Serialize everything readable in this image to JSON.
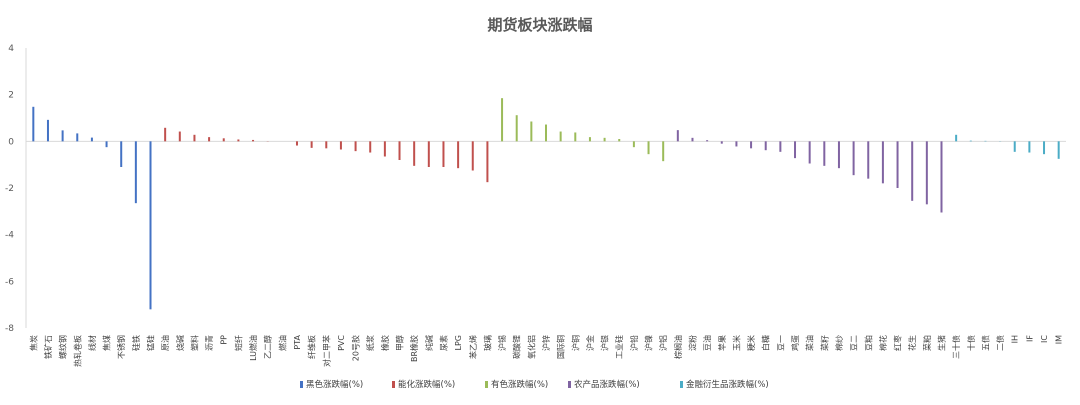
{
  "chart_data": {
    "type": "bar",
    "title": "期货板块涨跌幅",
    "xlabel": "",
    "ylabel": "",
    "ylim": [
      -8,
      4
    ],
    "yticks": [
      4,
      2,
      0,
      -2,
      -4,
      -6,
      -8
    ],
    "grid": false,
    "legend_position": "bottom",
    "series": [
      {
        "name": "黑色涨跌幅(%)",
        "color": "#4472C4",
        "categories": [
          "焦炭",
          "铁矿石",
          "螺纹钢",
          "热轧卷板",
          "线材",
          "焦煤",
          "不锈钢",
          "硅铁",
          "锰硅"
        ],
        "values": [
          1.48,
          0.92,
          0.47,
          0.34,
          0.16,
          -0.25,
          -1.1,
          -2.65,
          -7.2
        ]
      },
      {
        "name": "能化涨跌幅(%)",
        "color": "#C0504D",
        "categories": [
          "原油",
          "烧碱",
          "塑料",
          "沥青",
          "PP",
          "短纤",
          "LU燃油",
          "乙二醇",
          "燃油",
          "PTA",
          "纤维板",
          "对二甲苯",
          "PVC",
          "20号胶",
          "纸浆",
          "橡胶",
          "甲醇",
          "BR橡胶",
          "纯碱",
          "尿素",
          "LPG",
          "苯乙烯",
          "玻璃"
        ],
        "values": [
          0.58,
          0.42,
          0.28,
          0.18,
          0.13,
          0.08,
          0.06,
          0.01,
          0.0,
          -0.18,
          -0.28,
          -0.3,
          -0.35,
          -0.42,
          -0.48,
          -0.65,
          -0.8,
          -1.05,
          -1.1,
          -1.1,
          -1.15,
          -1.25,
          -1.75
        ]
      },
      {
        "name": "有色涨跌幅(%)",
        "color": "#9BBB59",
        "categories": [
          "沪锡",
          "碳酸锂",
          "氧化铝",
          "沪锌",
          "国际铜",
          "沪铜",
          "沪金",
          "沪银",
          "工业硅",
          "沪铅",
          "沪镍",
          "沪铝"
        ],
        "values": [
          1.85,
          1.12,
          0.85,
          0.72,
          0.42,
          0.38,
          0.18,
          0.15,
          0.1,
          -0.25,
          -0.55,
          -0.85
        ]
      },
      {
        "name": "农产品涨跌幅(%)",
        "color": "#8064A2",
        "categories": [
          "棕榈油",
          "淀粉",
          "豆油",
          "苹果",
          "玉米",
          "粳米",
          "白糖",
          "豆一",
          "鸡蛋",
          "菜油",
          "菜籽",
          "棉纱",
          "豆二",
          "豆粕",
          "棉花",
          "红枣",
          "花生",
          "菜粕",
          "生猪"
        ],
        "values": [
          0.48,
          0.15,
          0.05,
          -0.1,
          -0.22,
          -0.3,
          -0.38,
          -0.45,
          -0.72,
          -0.95,
          -1.05,
          -1.15,
          -1.45,
          -1.6,
          -1.8,
          -2.0,
          -2.55,
          -2.7,
          -3.05
        ]
      },
      {
        "name": "金融衍生品涨跌幅(%)",
        "color": "#4BACC6",
        "categories": [
          "三十债",
          "十债",
          "五债",
          "二债",
          "IH",
          "IF",
          "IC",
          "IM"
        ],
        "values": [
          0.28,
          0.03,
          0.02,
          0.01,
          -0.45,
          -0.48,
          -0.55,
          -0.75
        ]
      }
    ]
  }
}
